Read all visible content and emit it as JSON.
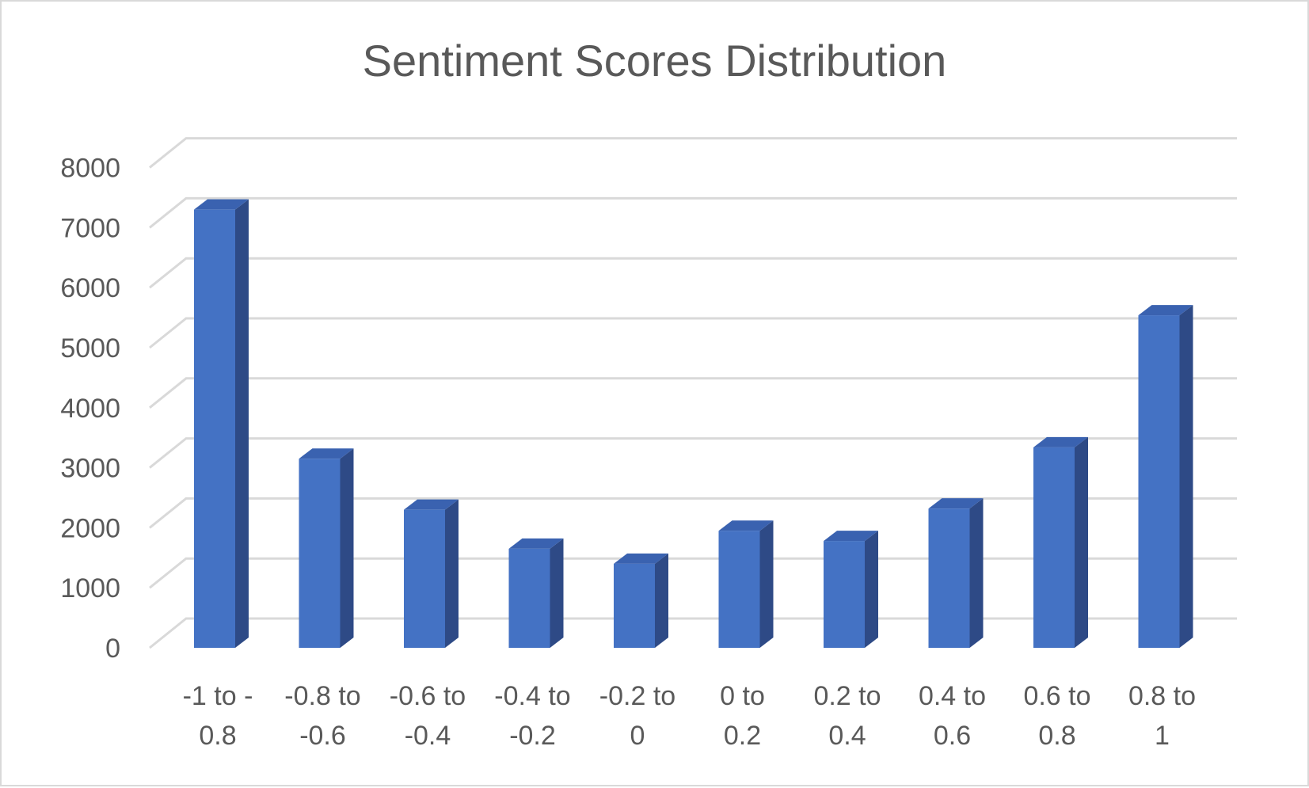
{
  "chart_data": {
    "type": "bar",
    "title": "Sentiment Scores Distribution",
    "categories": [
      [
        "-1 to -",
        "0.8"
      ],
      [
        "-0.8 to",
        "-0.6"
      ],
      [
        "-0.6 to",
        "-0.4"
      ],
      [
        "-0.4 to",
        "-0.2"
      ],
      [
        "-0.2 to",
        "0"
      ],
      [
        "0 to",
        "0.2"
      ],
      [
        "0.2 to",
        "0.4"
      ],
      [
        "0.4 to",
        "0.6"
      ],
      [
        "0.6 to",
        "0.8"
      ],
      [
        "0.8 to",
        "1"
      ]
    ],
    "values": [
      7300,
      3150,
      2300,
      1650,
      1400,
      1950,
      1780,
      2320,
      3340,
      5540
    ],
    "ylim": [
      0,
      8000
    ],
    "yticks": [
      "0",
      "1000",
      "2000",
      "3000",
      "4000",
      "5000",
      "6000",
      "7000",
      "8000"
    ],
    "grid": true,
    "style": "3d-column",
    "colors": {
      "bar_front": "#4472c4",
      "bar_side": "#2e4a86",
      "bar_top": "#3a62b0",
      "grid": "#d9d9d9",
      "text": "#595959"
    }
  }
}
